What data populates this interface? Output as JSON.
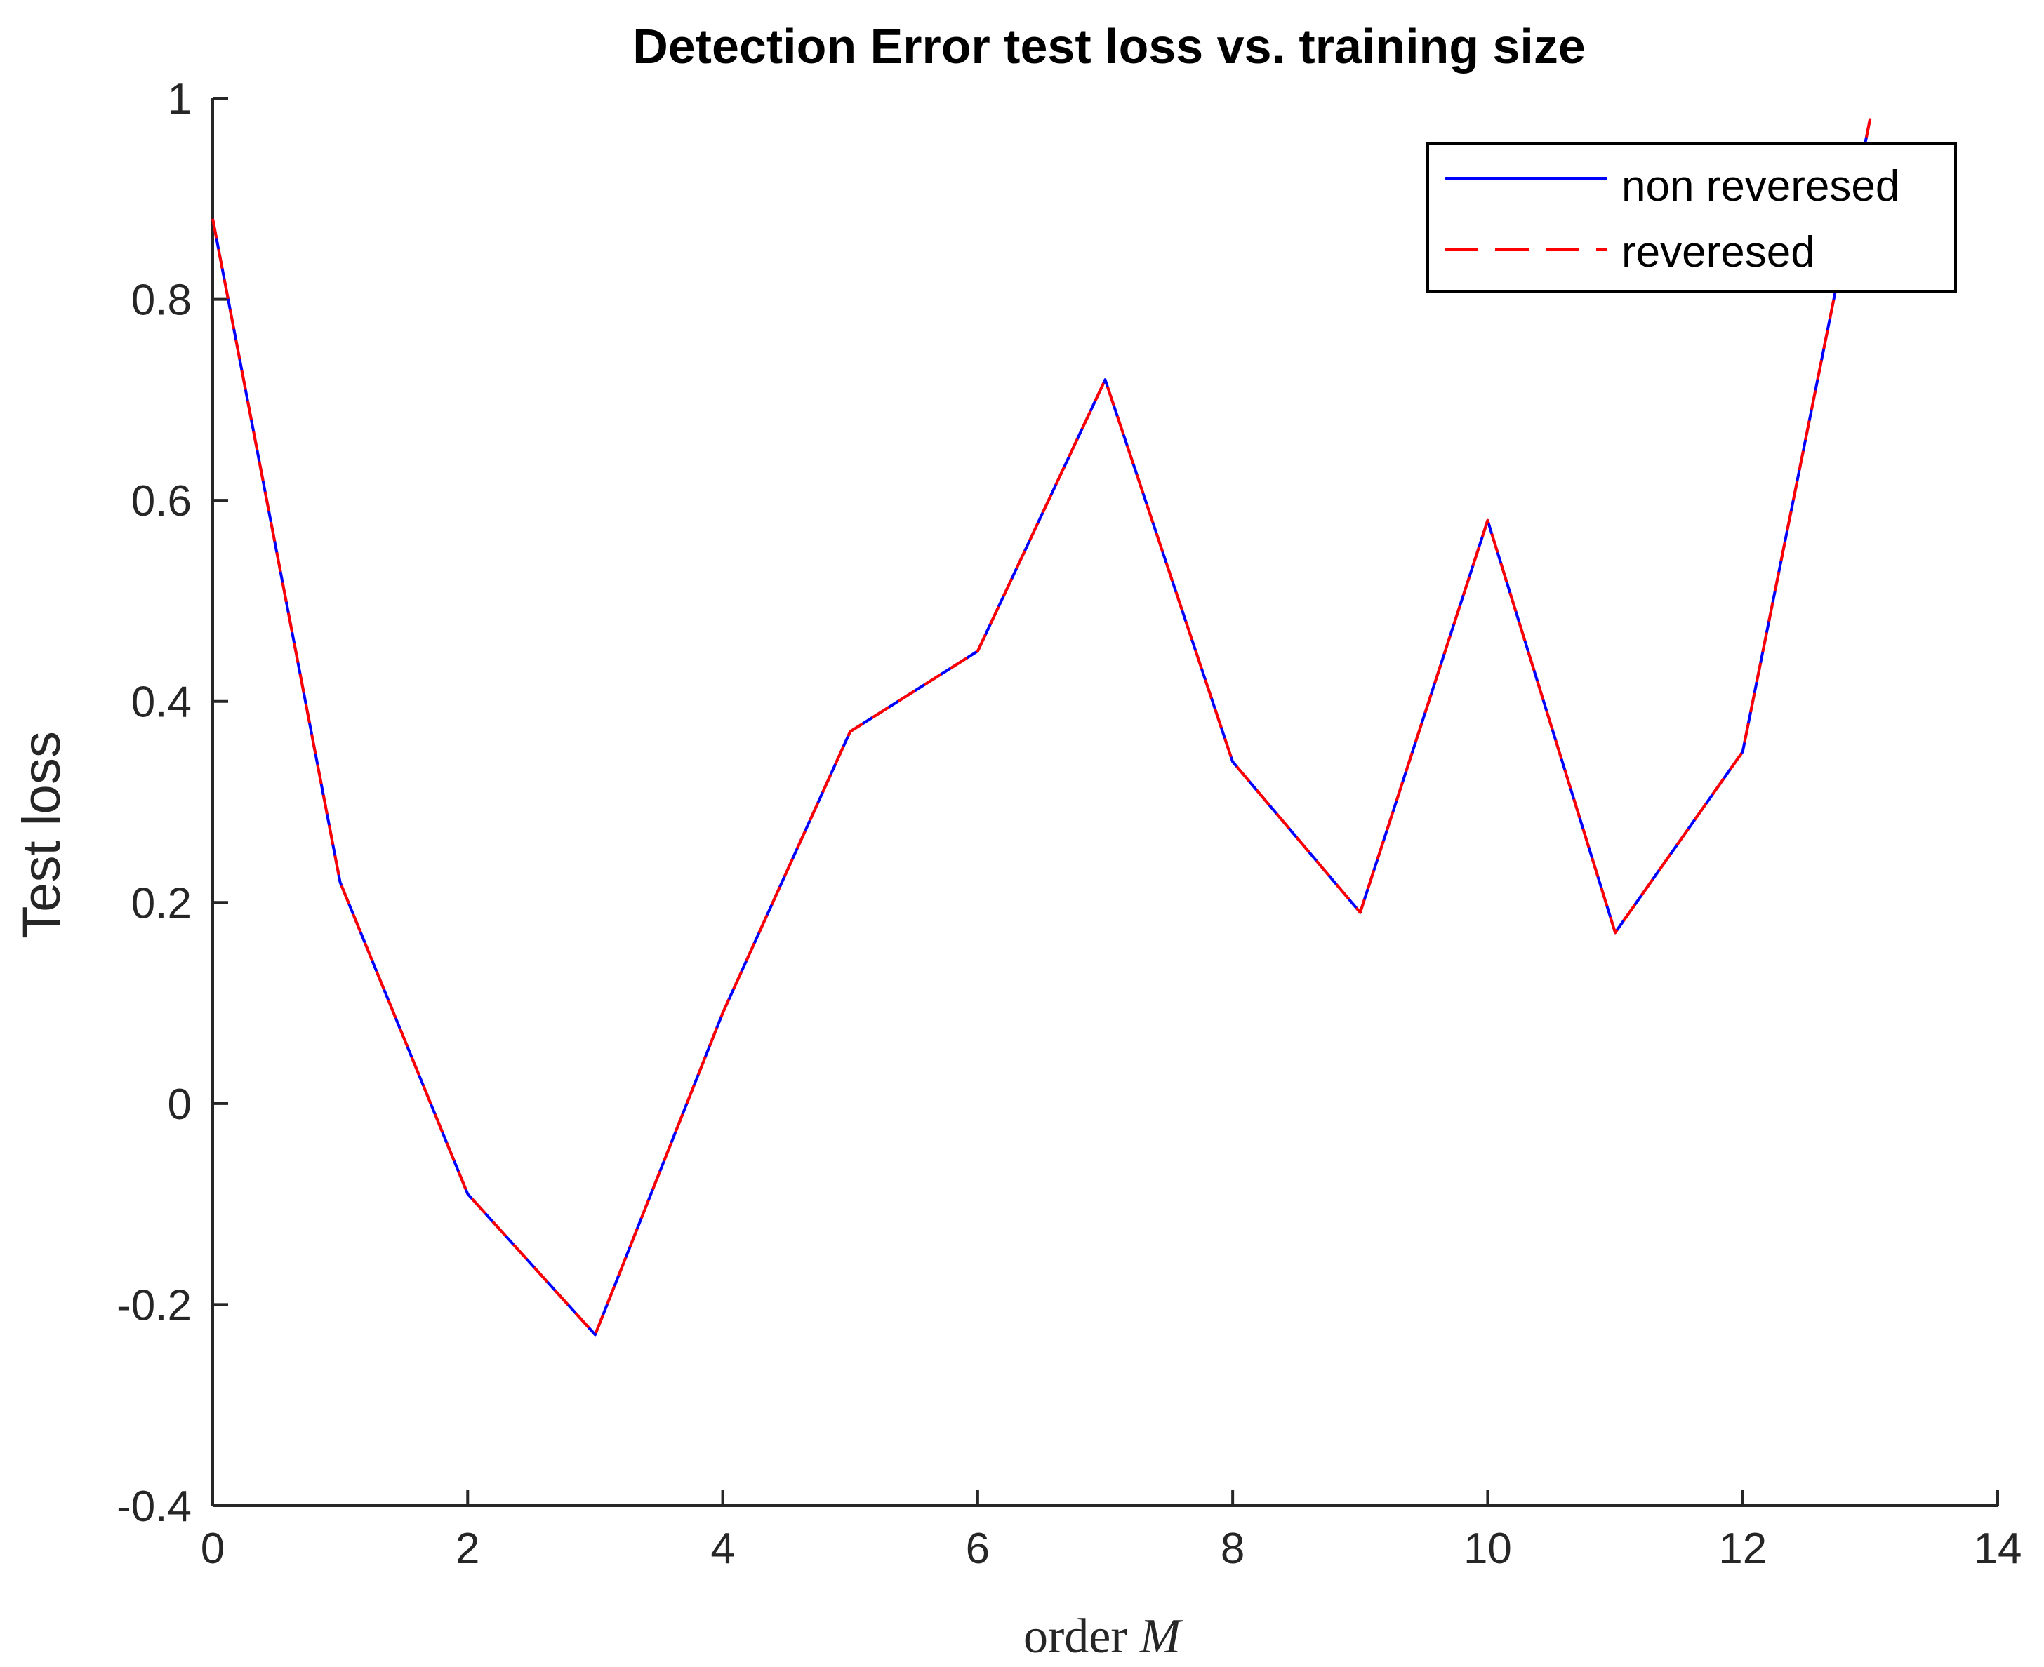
{
  "chart_data": {
    "type": "line",
    "title": "Detection Error test loss vs. training size",
    "xlabel_main": "order",
    "xlabel_symbol": "M",
    "ylabel": "Test loss",
    "xlim": [
      0,
      14
    ],
    "ylim": [
      -0.4,
      1
    ],
    "xticks": [
      "0",
      "2",
      "4",
      "6",
      "8",
      "10",
      "12",
      "14"
    ],
    "yticks": [
      "-0.4",
      "-0.2",
      "0",
      "0.2",
      "0.4",
      "0.6",
      "0.8",
      "1"
    ],
    "x": [
      0,
      1,
      2,
      3,
      4,
      5,
      6,
      7,
      8,
      9,
      10,
      11,
      12,
      13
    ],
    "series": [
      {
        "name": "non reveresed",
        "color": "#0000ff",
        "style": "solid",
        "values": [
          0.88,
          0.22,
          -0.09,
          -0.23,
          0.09,
          0.37,
          0.45,
          0.72,
          0.34,
          0.19,
          0.58,
          0.17,
          0.35,
          0.98
        ]
      },
      {
        "name": "reveresed",
        "color": "#ff0000",
        "style": "dashed",
        "values": [
          0.88,
          0.22,
          -0.09,
          -0.23,
          0.09,
          0.37,
          0.45,
          0.72,
          0.34,
          0.19,
          0.58,
          0.17,
          0.35,
          0.98
        ]
      }
    ],
    "grid": false,
    "legend_position": "top-right"
  }
}
